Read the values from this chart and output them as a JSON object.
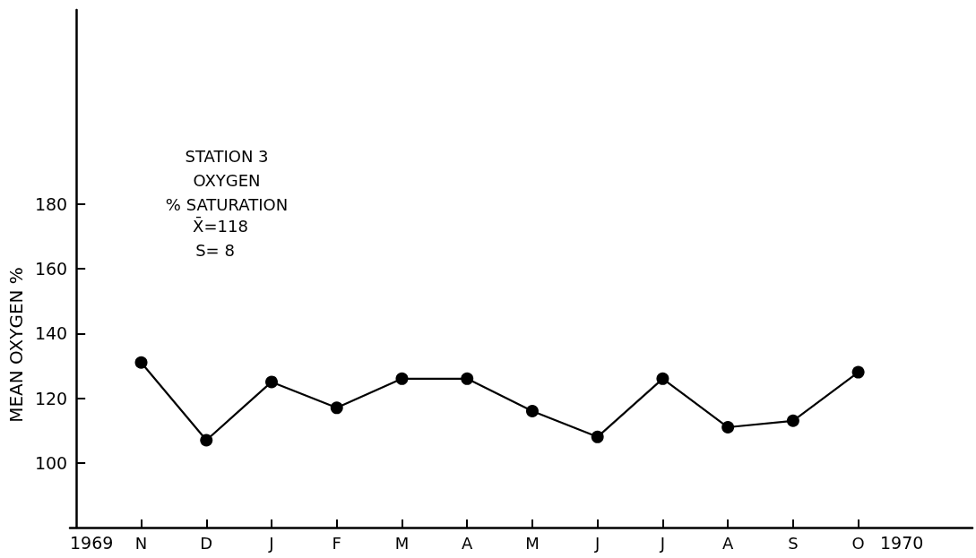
{
  "chart_data": {
    "type": "line",
    "title": "STATION 3\nOXYGEN\n% SATURATION",
    "ylabel": "MEAN OXYGEN %",
    "annotations": [
      "X̄=118",
      "S= 8",
      "1969",
      "1970"
    ],
    "categories": [
      "N",
      "D",
      "J",
      "F",
      "M",
      "A",
      "M",
      "J",
      "J",
      "A",
      "S",
      "O"
    ],
    "values": [
      131,
      107,
      125,
      117,
      126,
      126,
      116,
      108,
      126,
      111,
      113,
      128
    ],
    "color": "#000000",
    "ylim": [
      80,
      240
    ],
    "yticks": [
      100,
      120,
      140,
      160,
      180
    ],
    "marker": "circle",
    "line_style": "solid"
  }
}
